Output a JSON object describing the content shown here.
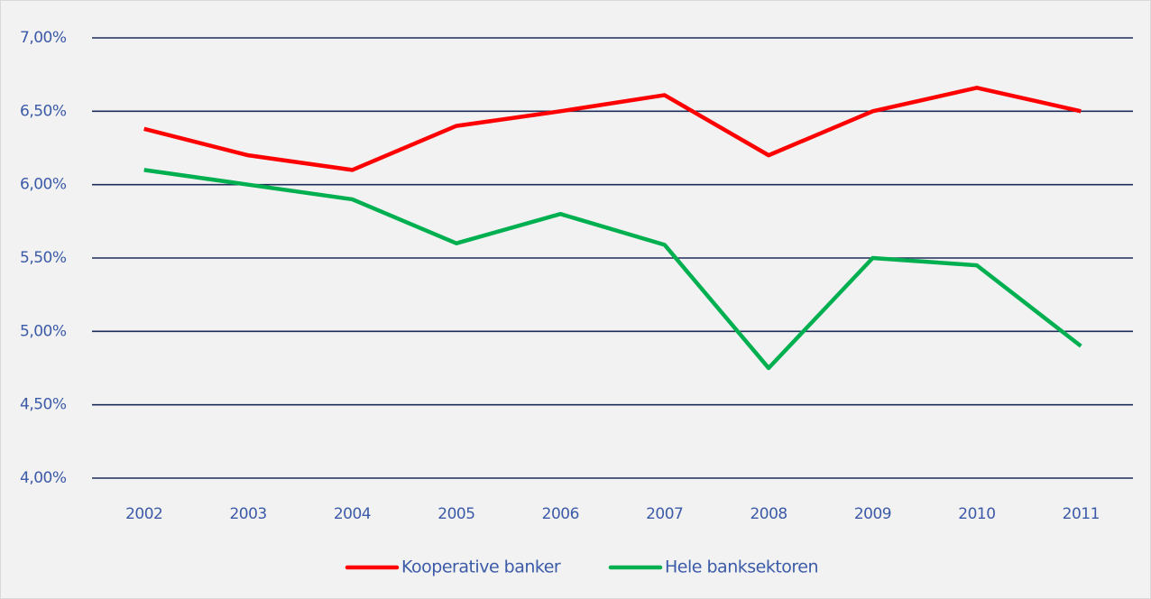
{
  "chart_data": {
    "type": "line",
    "categories": [
      "2002",
      "2003",
      "2004",
      "2005",
      "2006",
      "2007",
      "2008",
      "2009",
      "2010",
      "2011"
    ],
    "series": [
      {
        "name": "Kooperative banker",
        "color": "#ff0000",
        "values": [
          6.38,
          6.2,
          6.1,
          6.4,
          6.5,
          6.61,
          6.2,
          6.5,
          6.66,
          6.5
        ]
      },
      {
        "name": "Hele banksektoren",
        "color": "#00b050",
        "values": [
          6.1,
          6.0,
          5.9,
          5.6,
          5.8,
          5.59,
          4.75,
          5.5,
          5.45,
          4.9
        ]
      }
    ],
    "ylim": [
      4,
      7
    ],
    "yticks": [
      {
        "value": 4,
        "label": "4,00%"
      },
      {
        "value": 4.5,
        "label": "4,50%"
      },
      {
        "value": 5,
        "label": "5,00%"
      },
      {
        "value": 5.5,
        "label": "5,50%"
      },
      {
        "value": 6,
        "label": "6,00%"
      },
      {
        "value": 6.5,
        "label": "6,50%"
      },
      {
        "value": 7,
        "label": "7,00%"
      }
    ],
    "grid": true,
    "legend": "bottom"
  }
}
